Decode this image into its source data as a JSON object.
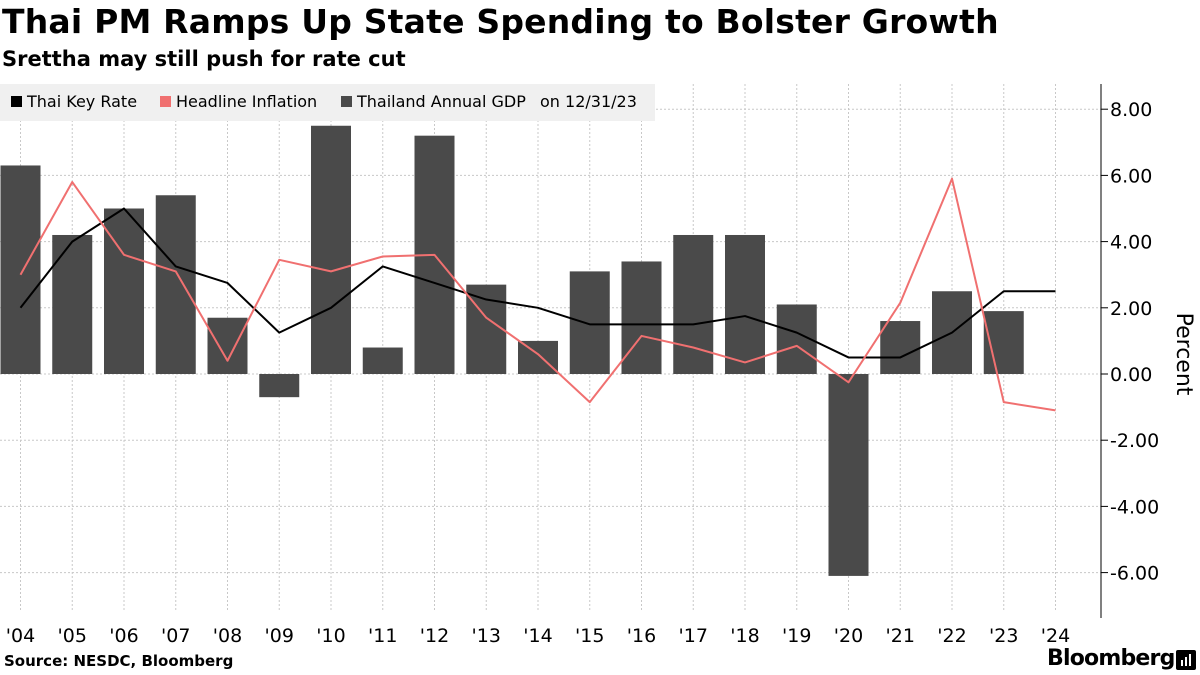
{
  "title": "Thai PM Ramps Up State Spending to Bolster Growth",
  "subtitle": "Srettha may still push for rate cut",
  "source": "Source: NESDC, Bloomberg",
  "brand": "Bloomberg",
  "colors": {
    "key_rate": "#000000",
    "inflation": "#f07070",
    "gdp": "#4a4a4a",
    "grid": "#c8c8c8",
    "legend_bg": "#f0f0f0"
  },
  "chart_data": {
    "type": "bar",
    "title": "Thai PM Ramps Up State Spending to Bolster Growth",
    "subtitle": "Srettha may still push for rate cut",
    "ylabel": "Percent",
    "ylim": [
      -7.2,
      8.8
    ],
    "grid": true,
    "y_axis_side": "right",
    "legend_position": "top-left",
    "legend_note": "on 12/31/23",
    "categories": [
      "'04",
      "'05",
      "'06",
      "'07",
      "'08",
      "'09",
      "'10",
      "'11",
      "'12",
      "'13",
      "'14",
      "'15",
      "'16",
      "'17",
      "'18",
      "'19",
      "'20",
      "'21",
      "'22",
      "'23",
      "'24"
    ],
    "y_ticks": [
      8,
      6,
      4,
      2,
      0,
      -2,
      -4,
      -6
    ],
    "y_tick_labels": [
      "8.00",
      "6.00",
      "4.00",
      "2.00",
      "0.00",
      "-2.00",
      "-4.00",
      "-6.00"
    ],
    "series": [
      {
        "name": "Thailand Annual GDP",
        "type": "bar",
        "values": [
          6.3,
          4.2,
          5.0,
          5.4,
          1.7,
          -0.7,
          7.5,
          0.8,
          7.2,
          2.7,
          1.0,
          3.1,
          3.4,
          4.2,
          4.2,
          2.1,
          -6.1,
          1.6,
          2.5,
          1.9,
          null
        ]
      },
      {
        "name": "Thai Key Rate",
        "type": "line",
        "values": [
          2.0,
          4.0,
          5.0,
          3.25,
          2.75,
          1.25,
          2.0,
          3.25,
          2.75,
          2.25,
          2.0,
          1.5,
          1.5,
          1.5,
          1.75,
          1.25,
          0.5,
          0.5,
          1.25,
          2.5,
          2.5
        ]
      },
      {
        "name": "Headline Inflation",
        "type": "line",
        "values": [
          3.0,
          5.8,
          3.6,
          3.1,
          0.4,
          3.45,
          3.1,
          3.55,
          3.6,
          1.7,
          0.6,
          -0.85,
          1.15,
          0.8,
          0.35,
          0.85,
          -0.25,
          2.15,
          5.9,
          -0.85,
          -1.1
        ]
      }
    ]
  }
}
